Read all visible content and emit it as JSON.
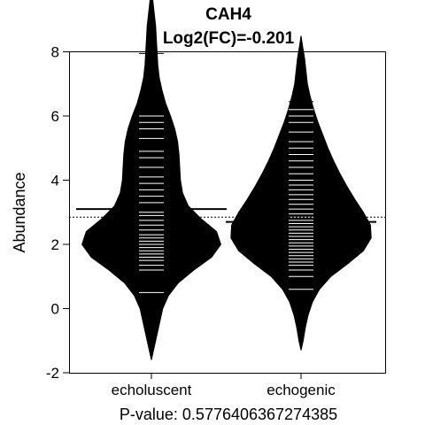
{
  "chart_data": {
    "type": "beanplot",
    "title": "CAH4",
    "subtitle": "Log2(FC)=-0.201",
    "ylabel": "Abundance",
    "xlabel": "P-value: 0.5776406367274385",
    "ylim": [
      -2,
      10
    ],
    "yticks": [
      -2,
      0,
      2,
      4,
      6,
      8,
      10
    ],
    "categories": [
      "echoluscent",
      "echogenic"
    ],
    "overall_mean": 2.85,
    "groups": [
      {
        "category": "echoluscent",
        "mean": 3.1,
        "min": -1.6,
        "max": 10.0,
        "density_profile": [
          [
            -1.6,
            0.0
          ],
          [
            -1.2,
            0.04
          ],
          [
            -0.8,
            0.08
          ],
          [
            -0.4,
            0.12
          ],
          [
            0.0,
            0.16
          ],
          [
            0.4,
            0.24
          ],
          [
            0.8,
            0.38
          ],
          [
            1.2,
            0.6
          ],
          [
            1.6,
            0.85
          ],
          [
            2.0,
            0.98
          ],
          [
            2.4,
            0.92
          ],
          [
            2.8,
            0.7
          ],
          [
            3.2,
            0.52
          ],
          [
            3.6,
            0.44
          ],
          [
            4.0,
            0.41
          ],
          [
            4.4,
            0.4
          ],
          [
            4.8,
            0.39
          ],
          [
            5.2,
            0.37
          ],
          [
            5.6,
            0.33
          ],
          [
            6.0,
            0.27
          ],
          [
            6.4,
            0.2
          ],
          [
            6.8,
            0.15
          ],
          [
            7.2,
            0.11
          ],
          [
            7.6,
            0.09
          ],
          [
            8.0,
            0.08
          ],
          [
            8.4,
            0.07
          ],
          [
            8.8,
            0.06
          ],
          [
            9.2,
            0.04
          ],
          [
            9.6,
            0.02
          ],
          [
            10.0,
            0.0
          ]
        ],
        "observations": [
          0.5,
          1.2,
          1.35,
          1.5,
          1.6,
          1.7,
          1.8,
          1.9,
          2.0,
          2.1,
          2.2,
          2.3,
          2.45,
          2.6,
          2.75,
          2.9,
          3.0,
          3.1,
          3.3,
          3.5,
          3.7,
          3.9,
          4.1,
          4.4,
          4.7,
          4.9,
          5.3,
          5.6,
          5.8,
          6.0,
          7.95
        ]
      },
      {
        "category": "echogenic",
        "mean": 2.7,
        "min": -1.3,
        "max": 8.5,
        "density_profile": [
          [
            -1.3,
            0.0
          ],
          [
            -1.0,
            0.03
          ],
          [
            -0.6,
            0.06
          ],
          [
            -0.2,
            0.1
          ],
          [
            0.2,
            0.16
          ],
          [
            0.6,
            0.26
          ],
          [
            1.0,
            0.42
          ],
          [
            1.4,
            0.66
          ],
          [
            1.8,
            0.88
          ],
          [
            2.2,
            0.99
          ],
          [
            2.6,
            0.98
          ],
          [
            3.0,
            0.88
          ],
          [
            3.4,
            0.76
          ],
          [
            3.8,
            0.65
          ],
          [
            4.2,
            0.55
          ],
          [
            4.6,
            0.46
          ],
          [
            5.0,
            0.38
          ],
          [
            5.4,
            0.31
          ],
          [
            5.8,
            0.24
          ],
          [
            6.2,
            0.18
          ],
          [
            6.6,
            0.13
          ],
          [
            7.0,
            0.09
          ],
          [
            7.4,
            0.07
          ],
          [
            7.8,
            0.05
          ],
          [
            8.2,
            0.02
          ],
          [
            8.5,
            0.0
          ]
        ],
        "observations": [
          0.6,
          1.0,
          1.2,
          1.35,
          1.45,
          1.55,
          1.65,
          1.75,
          1.85,
          1.95,
          2.05,
          2.15,
          2.25,
          2.35,
          2.45,
          2.55,
          2.65,
          2.75,
          2.85,
          2.95,
          3.1,
          3.25,
          3.4,
          3.55,
          3.7,
          3.85,
          4.0,
          4.2,
          4.4,
          4.6,
          4.8,
          5.0,
          5.2,
          5.5,
          5.8,
          6.0,
          6.2,
          6.45
        ]
      }
    ],
    "colors": {
      "bean": "#000000",
      "observation_line": "#ffffff",
      "frame": "#000000"
    }
  }
}
